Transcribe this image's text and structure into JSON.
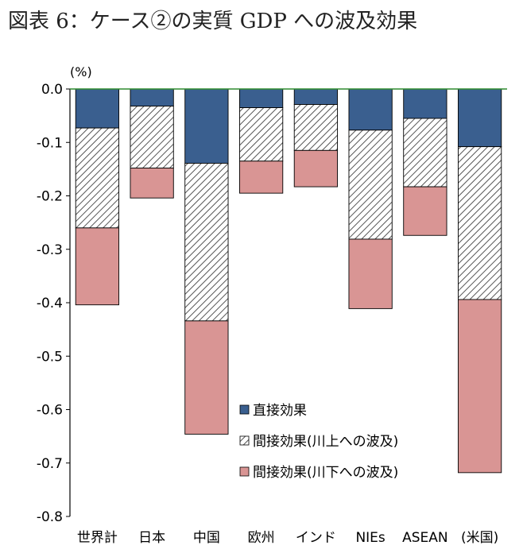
{
  "chart_data": {
    "type": "bar",
    "stacked": true,
    "title": "図表 6：ケース②の実質 GDP への波及効果",
    "ylabel": "(%)",
    "ylim": [
      -0.8,
      0.0
    ],
    "yticks": [
      0.0,
      -0.1,
      -0.2,
      -0.3,
      -0.4,
      -0.5,
      -0.6,
      -0.7,
      -0.8
    ],
    "ytick_labels": [
      "0.0",
      "-0.1",
      "-0.2",
      "-0.3",
      "-0.4",
      "-0.5",
      "-0.6",
      "-0.7",
      "-0.8"
    ],
    "categories": [
      "世界計",
      "日本",
      "中国",
      "欧州",
      "インド",
      "NIEs",
      "ASEAN",
      "(米国)"
    ],
    "legend_position": "lower-center",
    "series": [
      {
        "name": "直接効果",
        "color": "#3a5f8f",
        "pattern": "solid",
        "values": [
          -0.073,
          -0.032,
          -0.139,
          -0.035,
          -0.029,
          -0.077,
          -0.055,
          -0.108
        ]
      },
      {
        "name": "間接効果(川上への波及)",
        "color": "#ffffff",
        "pattern": "hatch",
        "values": [
          -0.187,
          -0.116,
          -0.295,
          -0.1,
          -0.086,
          -0.204,
          -0.128,
          -0.286
        ]
      },
      {
        "name": "間接効果(川下への波及)",
        "color": "#d99594",
        "pattern": "solid",
        "values": [
          -0.144,
          -0.056,
          -0.212,
          -0.06,
          -0.068,
          -0.13,
          -0.091,
          -0.324
        ]
      }
    ]
  }
}
